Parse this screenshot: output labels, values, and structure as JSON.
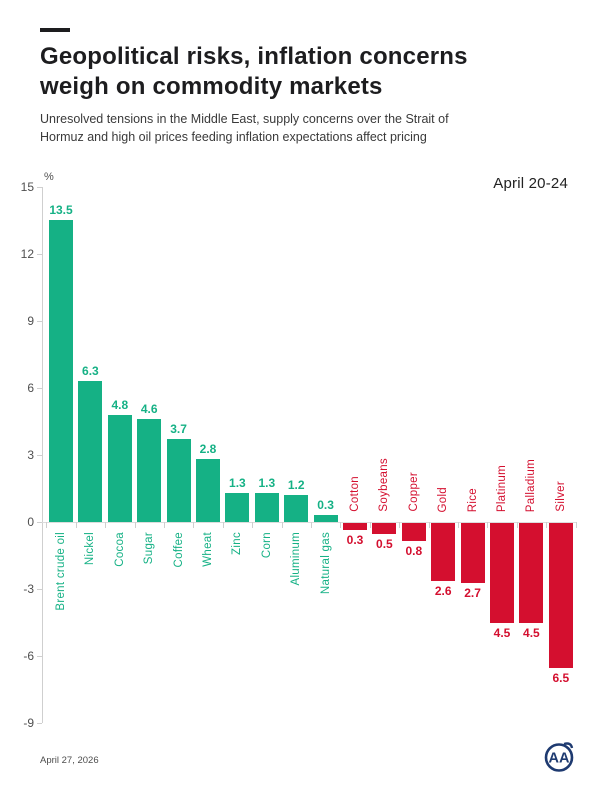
{
  "header": {
    "title_lines": [
      "Geopolitical risks, inflation concerns",
      "weigh on commodity markets"
    ],
    "subtitle": "Unresolved tensions in the Middle East, supply concerns over the Strait of Hormuz and high oil prices feeding inflation expectations affect pricing"
  },
  "chart_data": {
    "type": "bar",
    "title": "Geopolitical risks, inflation concerns weigh on commodity markets",
    "period_label": "April 20-24",
    "unit_label": "%",
    "ylabel": "%",
    "xlabel": "",
    "ylim": [
      -9,
      15
    ],
    "yticks": [
      15,
      12,
      9,
      6,
      3,
      0,
      -3,
      -6,
      -9
    ],
    "grid": false,
    "categories": [
      "Brent crude oil",
      "Nickel",
      "Cocoa",
      "Sugar",
      "Coffee",
      "Wheat",
      "Zinc",
      "Corn",
      "Aluminum",
      "Natural gas",
      "Cotton",
      "Soybeans",
      "Copper",
      "Gold",
      "Rice",
      "Platinum",
      "Palladium",
      "Silver"
    ],
    "values": [
      13.5,
      6.3,
      4.8,
      4.6,
      3.7,
      2.8,
      1.3,
      1.3,
      1.2,
      0.3,
      -0.3,
      -0.5,
      -0.8,
      -2.6,
      -2.7,
      -4.5,
      -4.5,
      -6.5
    ],
    "value_labels": [
      "13.5",
      "6.3",
      "4.8",
      "4.6",
      "3.7",
      "2.8",
      "1.3",
      "1.3",
      "1.2",
      "0.3",
      "0.3",
      "0.5",
      "0.8",
      "2.6",
      "2.7",
      "4.5",
      "4.5",
      "6.5"
    ],
    "colors": {
      "positive": "#15b185",
      "negative": "#d40f2f"
    }
  },
  "footer": {
    "date": "April 27, 2026",
    "logo_text": "AA",
    "logo_color": "#1e3a70"
  }
}
